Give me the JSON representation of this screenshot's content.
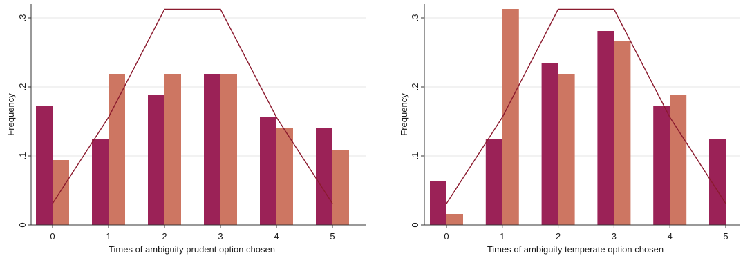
{
  "chart_data": [
    {
      "type": "bar",
      "title": "",
      "xlabel": "Times of ambiguity prudent option chosen",
      "ylabel": "Frequency",
      "x": [
        0,
        1,
        2,
        3,
        4,
        5
      ],
      "x_tick_labels": [
        "0",
        "1",
        "2",
        "3",
        "4",
        "5"
      ],
      "ylim": [
        0,
        0.32
      ],
      "y_ticks": [
        0,
        0.1,
        0.2,
        0.3
      ],
      "y_tick_labels": [
        "0",
        ".1",
        ".2",
        ".3"
      ],
      "grid": true,
      "series": [
        {
          "type": "bar",
          "color": "#9b2257",
          "values": [
            0.172,
            0.125,
            0.188,
            0.219,
            0.156,
            0.141
          ]
        },
        {
          "type": "bar",
          "color": "#cd7662",
          "values": [
            0.094,
            0.219,
            0.219,
            0.219,
            0.141,
            0.109
          ]
        },
        {
          "type": "line",
          "color": "#8b1a2e",
          "values": [
            0.031,
            0.156,
            0.3125,
            0.3125,
            0.156,
            0.031
          ]
        }
      ]
    },
    {
      "type": "bar",
      "title": "",
      "xlabel": "Times of ambiguity temperate option chosen",
      "ylabel": "Frequency",
      "x": [
        0,
        1,
        2,
        3,
        4,
        5
      ],
      "x_tick_labels": [
        "0",
        "1",
        "2",
        "3",
        "4",
        "5"
      ],
      "ylim": [
        0,
        0.32
      ],
      "y_ticks": [
        0,
        0.1,
        0.2,
        0.3
      ],
      "y_tick_labels": [
        "0",
        ".1",
        ".2",
        ".3"
      ],
      "grid": true,
      "series": [
        {
          "type": "bar",
          "color": "#9b2257",
          "values": [
            0.063,
            0.125,
            0.234,
            0.281,
            0.172,
            0.125
          ]
        },
        {
          "type": "bar",
          "color": "#cd7662",
          "values": [
            0.016,
            0.313,
            0.219,
            0.266,
            0.188,
            0.0
          ]
        },
        {
          "type": "line",
          "color": "#8b1a2e",
          "values": [
            0.031,
            0.156,
            0.3125,
            0.3125,
            0.156,
            0.031
          ]
        }
      ]
    }
  ]
}
